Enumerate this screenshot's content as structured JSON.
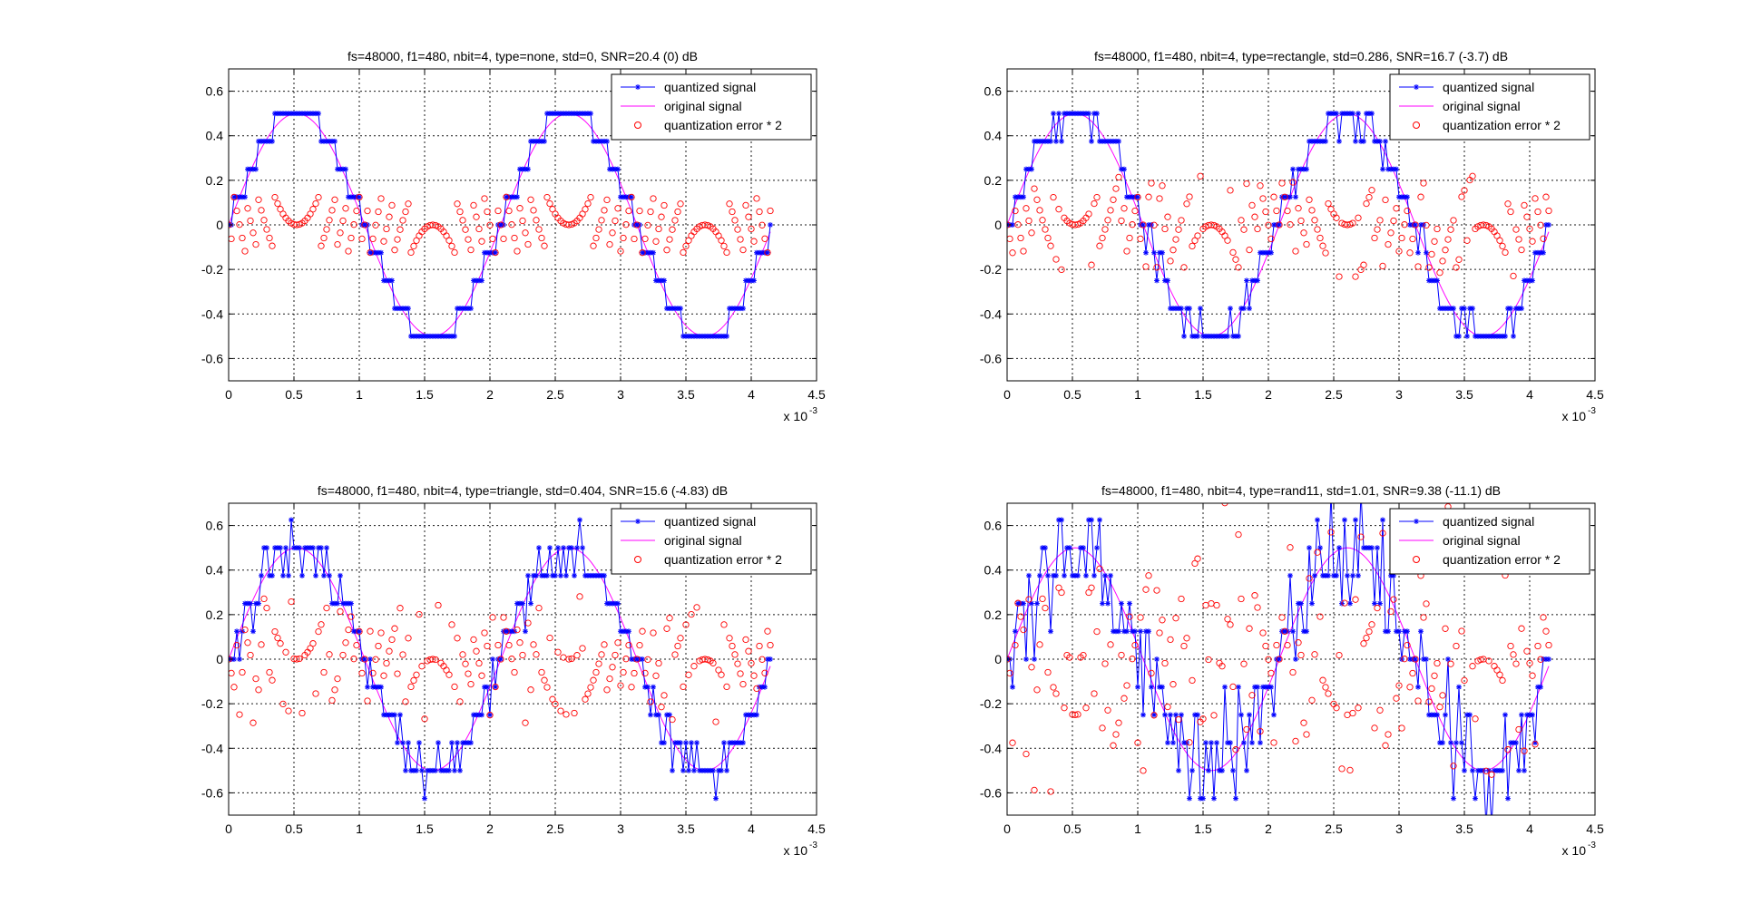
{
  "figure": {
    "background": "#ffffff"
  },
  "chart_data": [
    {
      "type": "line",
      "title": "fs=48000, f1=480, nbit=4, type=none, std=0, SNR=20.4 (0) dB",
      "xlim": [
        0,
        4.5
      ],
      "ylim": [
        -0.7,
        0.7
      ],
      "x_ticks": [
        "0",
        "0.5",
        "1",
        "1.5",
        "2",
        "2.5",
        "3",
        "3.5",
        "4",
        "4.5"
      ],
      "y_ticks": [
        "0.6",
        "0.4",
        "0.2",
        "0",
        "-0.2",
        "-0.4",
        "-0.6"
      ],
      "x_exponent_base": "x 10",
      "x_exponent_power": "-3",
      "grid": true,
      "legend_position": "top-right",
      "sample_period": 0.020833,
      "n_samples": 200,
      "frequency_hz": 480,
      "amplitude": 0.5,
      "quant_step": 0.125,
      "error_scale": 2,
      "dither": "none",
      "dither_std": 0,
      "series": [
        {
          "name": "quantized signal",
          "color": "#0000ff",
          "marker": "*"
        },
        {
          "name": "original signal",
          "color": "#ff00ff",
          "marker": "none"
        },
        {
          "name": "quantization error * 2",
          "color": "#ff0000",
          "marker": "o"
        }
      ]
    },
    {
      "type": "line",
      "title": "fs=48000, f1=480, nbit=4, type=rectangle, std=0.286, SNR=16.7 (-3.7) dB",
      "xlim": [
        0,
        4.5
      ],
      "ylim": [
        -0.7,
        0.7
      ],
      "x_ticks": [
        "0",
        "0.5",
        "1",
        "1.5",
        "2",
        "2.5",
        "3",
        "3.5",
        "4",
        "4.5"
      ],
      "y_ticks": [
        "0.6",
        "0.4",
        "0.2",
        "0",
        "-0.2",
        "-0.4",
        "-0.6"
      ],
      "x_exponent_base": "x 10",
      "x_exponent_power": "-3",
      "grid": true,
      "legend_position": "top-right",
      "sample_period": 0.020833,
      "n_samples": 200,
      "frequency_hz": 480,
      "amplitude": 0.5,
      "quant_step": 0.125,
      "error_scale": 2,
      "dither": "rectangle",
      "dither_std": 0.286,
      "series": [
        {
          "name": "quantized signal",
          "color": "#0000ff",
          "marker": "*"
        },
        {
          "name": "original signal",
          "color": "#ff00ff",
          "marker": "none"
        },
        {
          "name": "quantization error * 2",
          "color": "#ff0000",
          "marker": "o"
        }
      ]
    },
    {
      "type": "line",
      "title": "fs=48000, f1=480, nbit=4, type=triangle, std=0.404, SNR=15.6 (-4.83) dB",
      "xlim": [
        0,
        4.5
      ],
      "ylim": [
        -0.7,
        0.7
      ],
      "x_ticks": [
        "0",
        "0.5",
        "1",
        "1.5",
        "2",
        "2.5",
        "3",
        "3.5",
        "4",
        "4.5"
      ],
      "y_ticks": [
        "0.6",
        "0.4",
        "0.2",
        "0",
        "-0.2",
        "-0.4",
        "-0.6"
      ],
      "x_exponent_base": "x 10",
      "x_exponent_power": "-3",
      "grid": true,
      "legend_position": "top-right",
      "sample_period": 0.020833,
      "n_samples": 200,
      "frequency_hz": 480,
      "amplitude": 0.5,
      "quant_step": 0.125,
      "error_scale": 2,
      "dither": "triangle",
      "dither_std": 0.404,
      "series": [
        {
          "name": "quantized signal",
          "color": "#0000ff",
          "marker": "*"
        },
        {
          "name": "original signal",
          "color": "#ff00ff",
          "marker": "none"
        },
        {
          "name": "quantization error * 2",
          "color": "#ff0000",
          "marker": "o"
        }
      ]
    },
    {
      "type": "line",
      "title": "fs=48000, f1=480, nbit=4, type=rand11, std=1.01, SNR=9.38 (-11.1) dB",
      "xlim": [
        0,
        4.5
      ],
      "ylim": [
        -0.7,
        0.7
      ],
      "x_ticks": [
        "0",
        "0.5",
        "1",
        "1.5",
        "2",
        "2.5",
        "3",
        "3.5",
        "4",
        "4.5"
      ],
      "y_ticks": [
        "0.6",
        "0.4",
        "0.2",
        "0",
        "-0.2",
        "-0.4",
        "-0.6"
      ],
      "x_exponent_base": "x 10",
      "x_exponent_power": "-3",
      "grid": true,
      "legend_position": "top-right",
      "sample_period": 0.020833,
      "n_samples": 200,
      "frequency_hz": 480,
      "amplitude": 0.5,
      "quant_step": 0.125,
      "error_scale": 2,
      "dither": "rand11",
      "dither_std": 1.01,
      "series": [
        {
          "name": "quantized signal",
          "color": "#0000ff",
          "marker": "*"
        },
        {
          "name": "original signal",
          "color": "#ff00ff",
          "marker": "none"
        },
        {
          "name": "quantization error * 2",
          "color": "#ff0000",
          "marker": "o"
        }
      ]
    }
  ]
}
